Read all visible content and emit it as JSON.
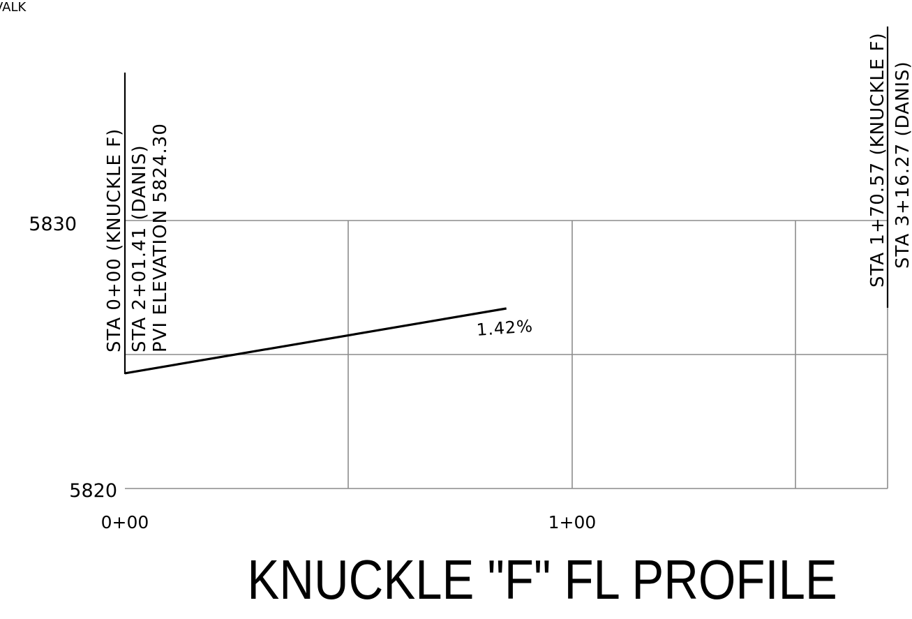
{
  "corner_text": "VALK",
  "title": "KNUCKLE \"F\" FL PROFILE",
  "elevation_labels": {
    "top": "5830",
    "bottom": "5820"
  },
  "station_labels": {
    "start": "0+00",
    "mid": "1+00"
  },
  "grade_label": "1.42%",
  "begin_callout": {
    "line1": "STA 0+00 (KNUCKLE F)",
    "line2": "STA 2+01.41 (DANIS)",
    "line3": "PVI ELEVATION 5824.30"
  },
  "end_callout": {
    "line1": "STA 1+70.57 (KNUCKLE F)",
    "line2": "STA 3+16.27 (DANIS)"
  },
  "chart_data": {
    "type": "line",
    "title": "KNUCKLE \"F\" FL PROFILE",
    "xlabel": "",
    "ylabel": "",
    "x_unit": "station (ft)",
    "xlim": [
      0,
      170.57
    ],
    "ylim": [
      5820,
      5830
    ],
    "x_ticks": [
      "0+00",
      "1+00"
    ],
    "y_ticks": [
      "5830",
      "5820"
    ],
    "grid": true,
    "series": [
      {
        "grade": "1.42%",
        "x": [
          0,
          170.57
        ],
        "y": [
          5824.3,
          5826.72
        ]
      }
    ]
  }
}
